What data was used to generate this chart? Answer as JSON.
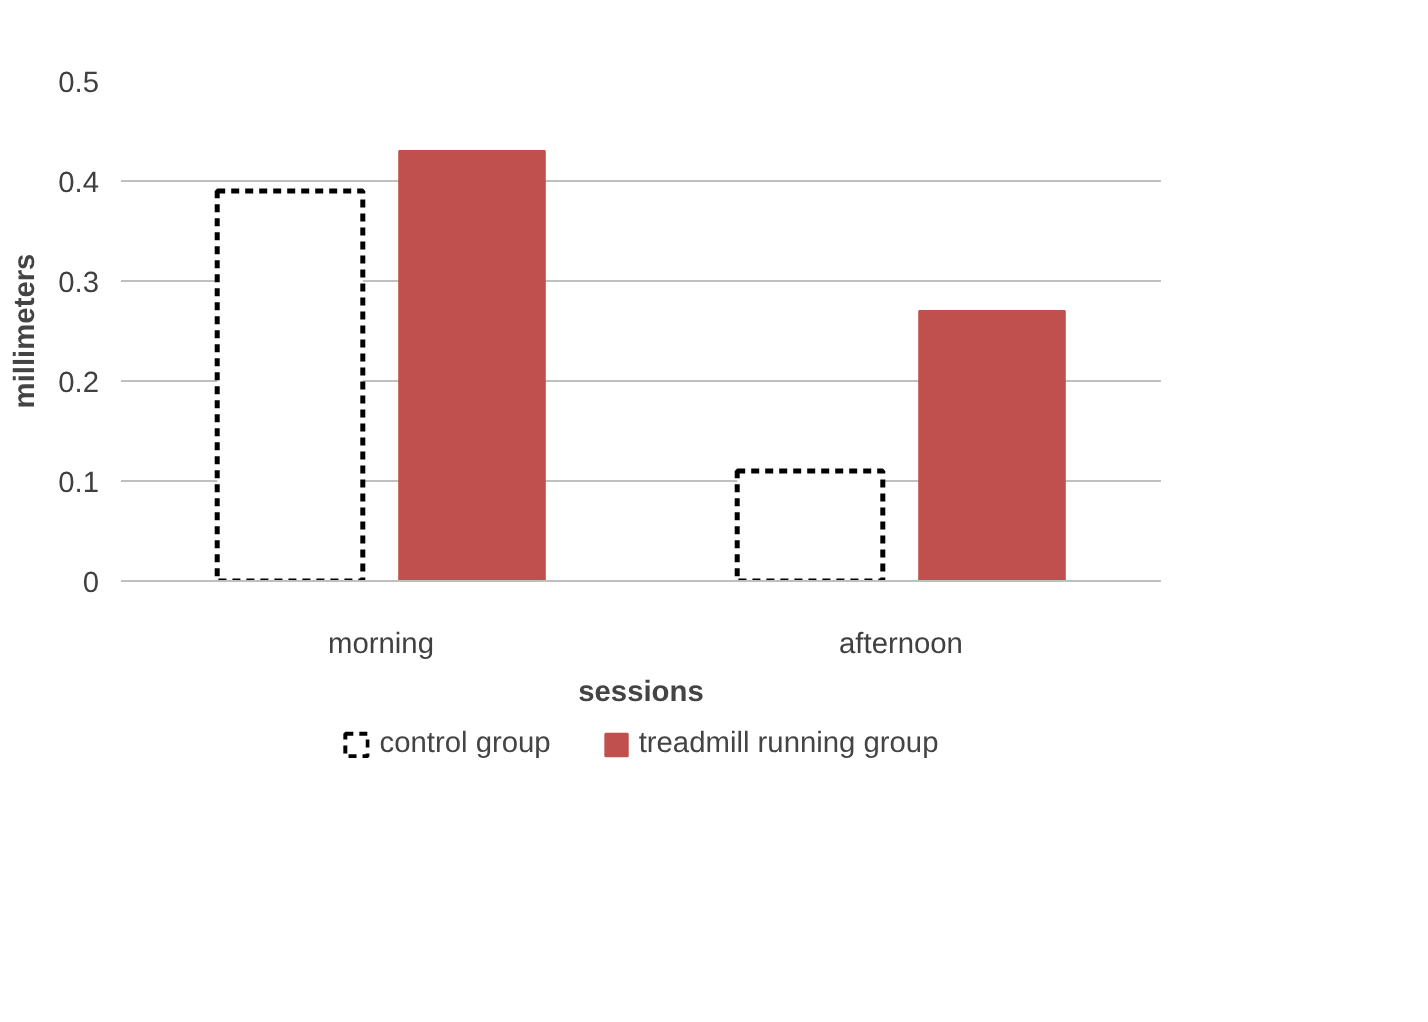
{
  "chart_data": {
    "type": "bar",
    "xlabel": "sessions",
    "ylabel": "millimeters",
    "categories": [
      "morning",
      "afternoon"
    ],
    "series": [
      {
        "name": "control group",
        "color": "#ffffff",
        "line_style": "dashed",
        "values": [
          0.39,
          0.11
        ]
      },
      {
        "name": "treadmill running group",
        "color": "#c0504d",
        "values": [
          0.43,
          0.27
        ]
      }
    ],
    "ylim": [
      0,
      0.5
    ],
    "yticks": [
      0,
      0.1,
      0.2,
      0.3,
      0.4,
      0.5
    ],
    "grid": "y",
    "legend": "bottom"
  }
}
